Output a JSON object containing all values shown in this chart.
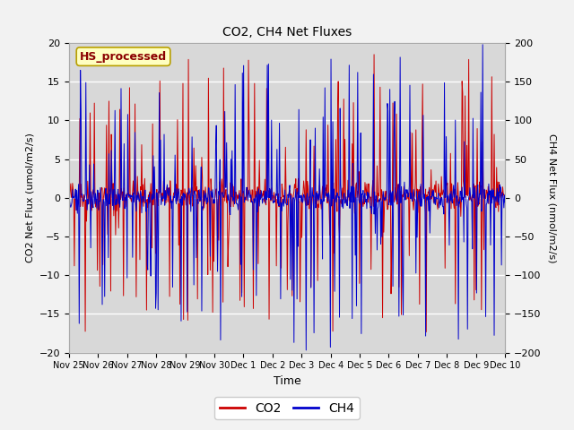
{
  "title": "CO2, CH4 Net Fluxes",
  "xlabel": "Time",
  "ylabel_left": "CO2 Net Flux (umol/m2/s)",
  "ylabel_right": "CH4 Net Flux (nmol/m2/s)",
  "ylim_left": [
    -20,
    20
  ],
  "ylim_right": [
    -200,
    200
  ],
  "co2_color": "#cc0000",
  "ch4_color": "#0000cc",
  "plot_bg_color": "#d8d8d8",
  "fig_bg_color": "#f2f2f2",
  "legend_label": "HS_processed",
  "legend_bg": "#ffffc0",
  "legend_edge": "#8b0000",
  "co2_label": "CO2",
  "ch4_label": "CH4",
  "xtick_labels": [
    "Nov 25",
    "Nov 26",
    "Nov 27",
    "Nov 28",
    "Nov 29",
    "Nov 30",
    "Dec 1",
    "Dec 2",
    "Dec 3",
    "Dec 4",
    "Dec 5",
    "Dec 6",
    "Dec 7",
    "Dec 8",
    "Dec 9",
    "Dec 10"
  ],
  "yticks_left": [
    -20,
    -15,
    -10,
    -5,
    0,
    5,
    10,
    15,
    20
  ],
  "yticks_right": [
    -200,
    -150,
    -100,
    -50,
    0,
    50,
    100,
    150,
    200
  ],
  "n_points": 720,
  "random_seed": 42,
  "figsize": [
    6.4,
    4.8
  ],
  "dpi": 100
}
